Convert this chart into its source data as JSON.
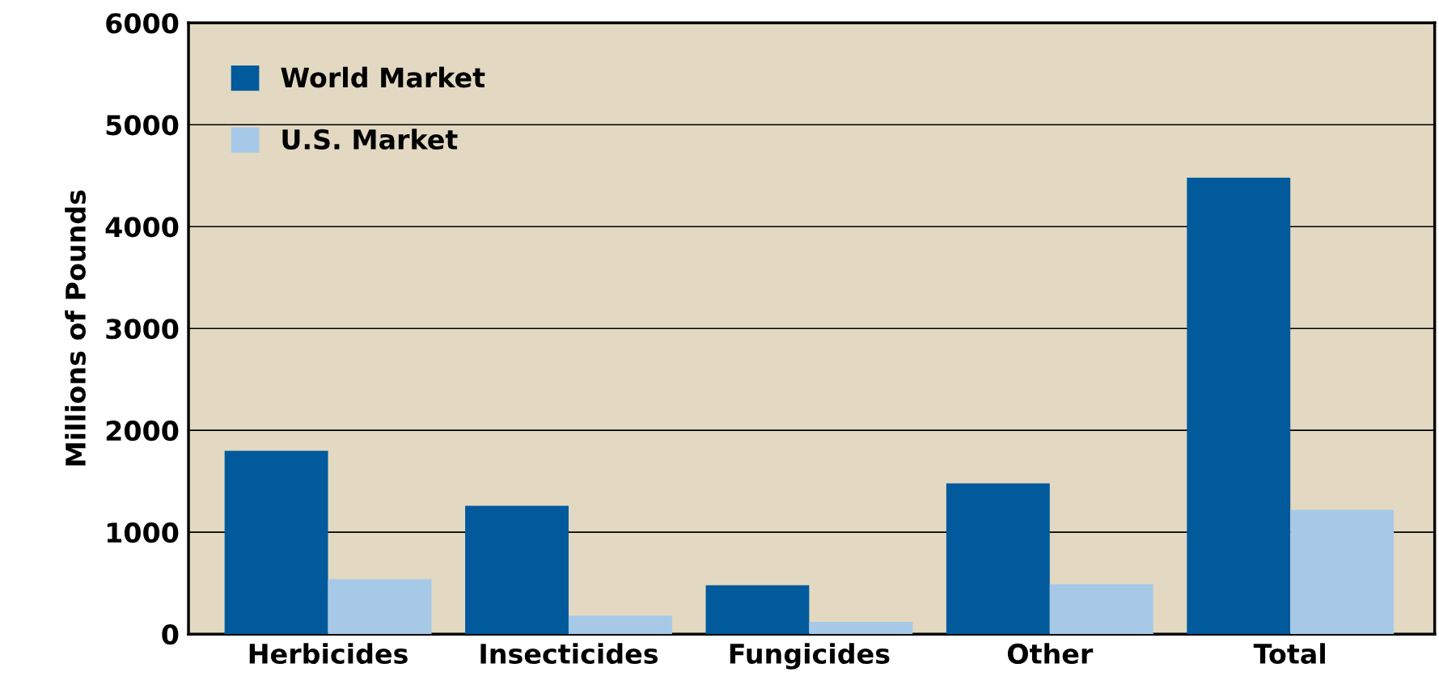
{
  "chart_data": {
    "type": "bar",
    "ylabel": "Millions of Pounds",
    "categories": [
      "Herbicides",
      "Insecticides",
      "Fungicides",
      "Other",
      "Total"
    ],
    "series": [
      {
        "name": "World Market",
        "color": "#005a9c",
        "values": [
          1800,
          1260,
          480,
          1480,
          4480
        ]
      },
      {
        "name": "U.S. Market",
        "color": "#a6c9e8",
        "values": [
          540,
          180,
          120,
          490,
          1220
        ]
      }
    ],
    "ylim": [
      0,
      6000
    ],
    "yticks": [
      0,
      1000,
      2000,
      3000,
      4000,
      5000,
      6000
    ],
    "grid": "y",
    "legend": "top left"
  }
}
